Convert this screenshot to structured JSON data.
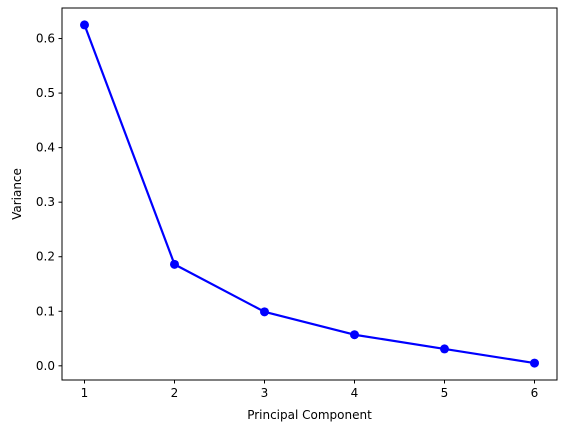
{
  "chart_data": {
    "type": "line",
    "title": "",
    "xlabel": "Principal Component",
    "ylabel": "Variance",
    "x": [
      1,
      2,
      3,
      4,
      5,
      6
    ],
    "series": [
      {
        "values": [
          0.625,
          0.186,
          0.099,
          0.057,
          0.031,
          0.005
        ],
        "color": "#0000ff",
        "marker": "circle"
      }
    ],
    "xticks": [
      1,
      2,
      3,
      4,
      5,
      6
    ],
    "xtick_labels": [
      "1",
      "2",
      "3",
      "4",
      "5",
      "6"
    ],
    "yticks": [
      0.0,
      0.1,
      0.2,
      0.3,
      0.4,
      0.5,
      0.6
    ],
    "ytick_labels": [
      "0.0",
      "0.1",
      "0.2",
      "0.3",
      "0.4",
      "0.5",
      "0.6"
    ],
    "xlim": [
      0.75,
      6.25
    ],
    "ylim": [
      -0.026,
      0.656
    ],
    "grid": false,
    "legend": "none"
  }
}
